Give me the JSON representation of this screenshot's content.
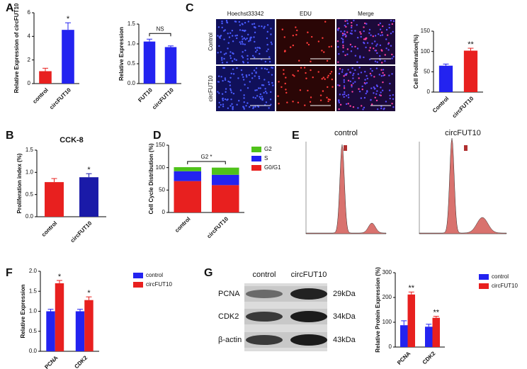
{
  "panels": [
    "A",
    "B",
    "C",
    "D",
    "E",
    "F",
    "G"
  ],
  "chart_data": [
    {
      "type": "bar",
      "ylabel": "Relative Expression of circFUT10",
      "categories": [
        "control",
        "circFUT10"
      ],
      "values": [
        1.05,
        4.55
      ],
      "errors": [
        0.25,
        0.6
      ],
      "colors": [
        "#e8201f",
        "#2323f0"
      ],
      "significance": [
        null,
        "*"
      ],
      "ylim": [
        0,
        6
      ],
      "yticks": [
        0,
        2,
        4,
        6
      ]
    },
    {
      "type": "bar",
      "ylabel": "Relative Expression",
      "categories": [
        "FUT10",
        "circFUT10"
      ],
      "values": [
        1.06,
        0.92
      ],
      "errors": [
        0.06,
        0.03
      ],
      "colors": [
        "#2323f0",
        "#2323f0"
      ],
      "bracket": "NS",
      "ylim": [
        0,
        1.5
      ],
      "yticks": [
        {
          "value": 0,
          "label": "0.0"
        },
        {
          "value": 0.5,
          "label": "0.5"
        },
        {
          "value": 1,
          "label": "1.0"
        },
        {
          "value": 1.5,
          "label": "1.5"
        }
      ]
    },
    {
      "type": "bar",
      "ylabel": "Cell Proliferation(%)",
      "categories": [
        "Control",
        "circFUT10"
      ],
      "values": [
        65,
        102
      ],
      "errors": [
        4,
        6
      ],
      "colors": [
        "#2323f0",
        "#e8201f"
      ],
      "significance": [
        null,
        "**"
      ],
      "ylim": [
        0,
        150
      ],
      "yticks": [
        0,
        50,
        100,
        150
      ]
    },
    {
      "type": "bar",
      "title": "CCK-8",
      "ylabel": "Proliferation index (%)",
      "categories": [
        "control",
        "circFUT10"
      ],
      "values": [
        0.78,
        0.89
      ],
      "errors": [
        0.08,
        0.08
      ],
      "colors": [
        "#e8201f",
        "#1a1aa8"
      ],
      "significance": [
        null,
        "*"
      ],
      "ylim": [
        0,
        1.5
      ],
      "yticks": [
        {
          "value": 0,
          "label": "0.0"
        },
        {
          "value": 0.5,
          "label": "0.5"
        },
        {
          "value": 1,
          "label": "1.0"
        },
        {
          "value": 1.5,
          "label": "1.5"
        }
      ]
    },
    {
      "type": "stacked",
      "ylabel": "Cell Cycle Distribution (%)",
      "categories": [
        "control",
        "circFUT10"
      ],
      "series": [
        {
          "name": "G0/G1",
          "color": "#e8201f",
          "values": [
            70,
            61
          ]
        },
        {
          "name": "S",
          "color": "#2323f0",
          "values": [
            22,
            23
          ]
        },
        {
          "name": "G2",
          "color": "#4fc21a",
          "values": [
            9,
            16
          ]
        }
      ],
      "bracket": "G2 *",
      "legend": "right",
      "ylim": [
        0,
        150
      ],
      "yticks": [
        0,
        50,
        100,
        150
      ]
    },
    {
      "type": "grouped",
      "ylabel": "Relative Expression",
      "categories": [
        "PCNA",
        "CDK2"
      ],
      "series": [
        {
          "name": "control",
          "color": "#2323f0",
          "values": [
            1.0,
            1.0
          ],
          "errors": [
            0.05,
            0.05
          ]
        },
        {
          "name": "circFUT10",
          "color": "#e8201f",
          "values": [
            1.7,
            1.28
          ],
          "errors": [
            0.07,
            0.08
          ],
          "significance": [
            "*",
            "*"
          ]
        }
      ],
      "legend": "right",
      "ylim": [
        0,
        2
      ],
      "yticks": [
        {
          "value": 0,
          "label": "0.0"
        },
        {
          "value": 0.5,
          "label": "0.5"
        },
        {
          "value": 1,
          "label": "1.0"
        },
        {
          "value": 1.5,
          "label": "1.5"
        },
        {
          "value": 2,
          "label": "2.0"
        }
      ]
    },
    {
      "type": "grouped",
      "ylabel": "Relative Protein Expression (%)",
      "categories": [
        "PCNA",
        "CDK2"
      ],
      "series": [
        {
          "name": "control",
          "color": "#2323f0",
          "values": [
            88,
            82
          ],
          "errors": [
            18,
            10
          ]
        },
        {
          "name": "circFUT10",
          "color": "#e8201f",
          "values": [
            212,
            118
          ],
          "errors": [
            10,
            6
          ],
          "significance": [
            "**",
            "**"
          ]
        }
      ],
      "legend": "right",
      "ylim": [
        0,
        300
      ],
      "yticks": [
        0,
        100,
        200,
        300
      ]
    }
  ],
  "microscopy": {
    "columns": [
      "Hoechst33342",
      "EDU",
      "Merge"
    ],
    "rows": [
      "Control",
      "circFUT10"
    ]
  },
  "flow_cytometry": {
    "titles": [
      "control",
      "circFUT10"
    ]
  },
  "western_blot": {
    "lanes": [
      "control",
      "circFUT10"
    ],
    "proteins": [
      "PCNA",
      "CDK2",
      "β-actin"
    ],
    "sizes": [
      "29kDa",
      "34kDa",
      "43kDa"
    ]
  }
}
